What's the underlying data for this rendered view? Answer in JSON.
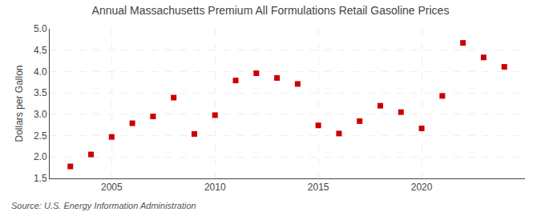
{
  "chart_data": {
    "type": "scatter",
    "title": "Annual Massachusetts Premium All Formulations Retail Gasoline Prices",
    "ylabel": "Dollars per Gallon",
    "annotations": [
      "Source: U.S. Energy Information Administration"
    ],
    "x": [
      2003,
      2004,
      2005,
      2006,
      2007,
      2008,
      2009,
      2010,
      2011,
      2012,
      2013,
      2014,
      2015,
      2016,
      2017,
      2018,
      2019,
      2020,
      2021,
      2022,
      2023,
      2024
    ],
    "values": [
      1.78,
      2.06,
      2.47,
      2.79,
      2.95,
      3.39,
      2.54,
      2.98,
      3.79,
      3.96,
      3.85,
      3.71,
      2.74,
      2.55,
      2.84,
      3.2,
      3.05,
      2.67,
      3.43,
      4.67,
      4.33,
      4.11
    ],
    "color": "#cc0000",
    "marker": "square",
    "xlim": [
      2002,
      2025
    ],
    "xticks": [
      2005,
      2010,
      2015,
      2020
    ],
    "ylim": [
      1.5,
      5.0
    ],
    "yticks": [
      1.5,
      {
        "value": 2,
        "label": "2.0"
      },
      2.5,
      {
        "value": 3,
        "label": "3.0"
      },
      3.5,
      {
        "value": 4,
        "label": "4.0"
      },
      4.5,
      {
        "value": 5,
        "label": "5.0"
      }
    ],
    "grid": true
  }
}
